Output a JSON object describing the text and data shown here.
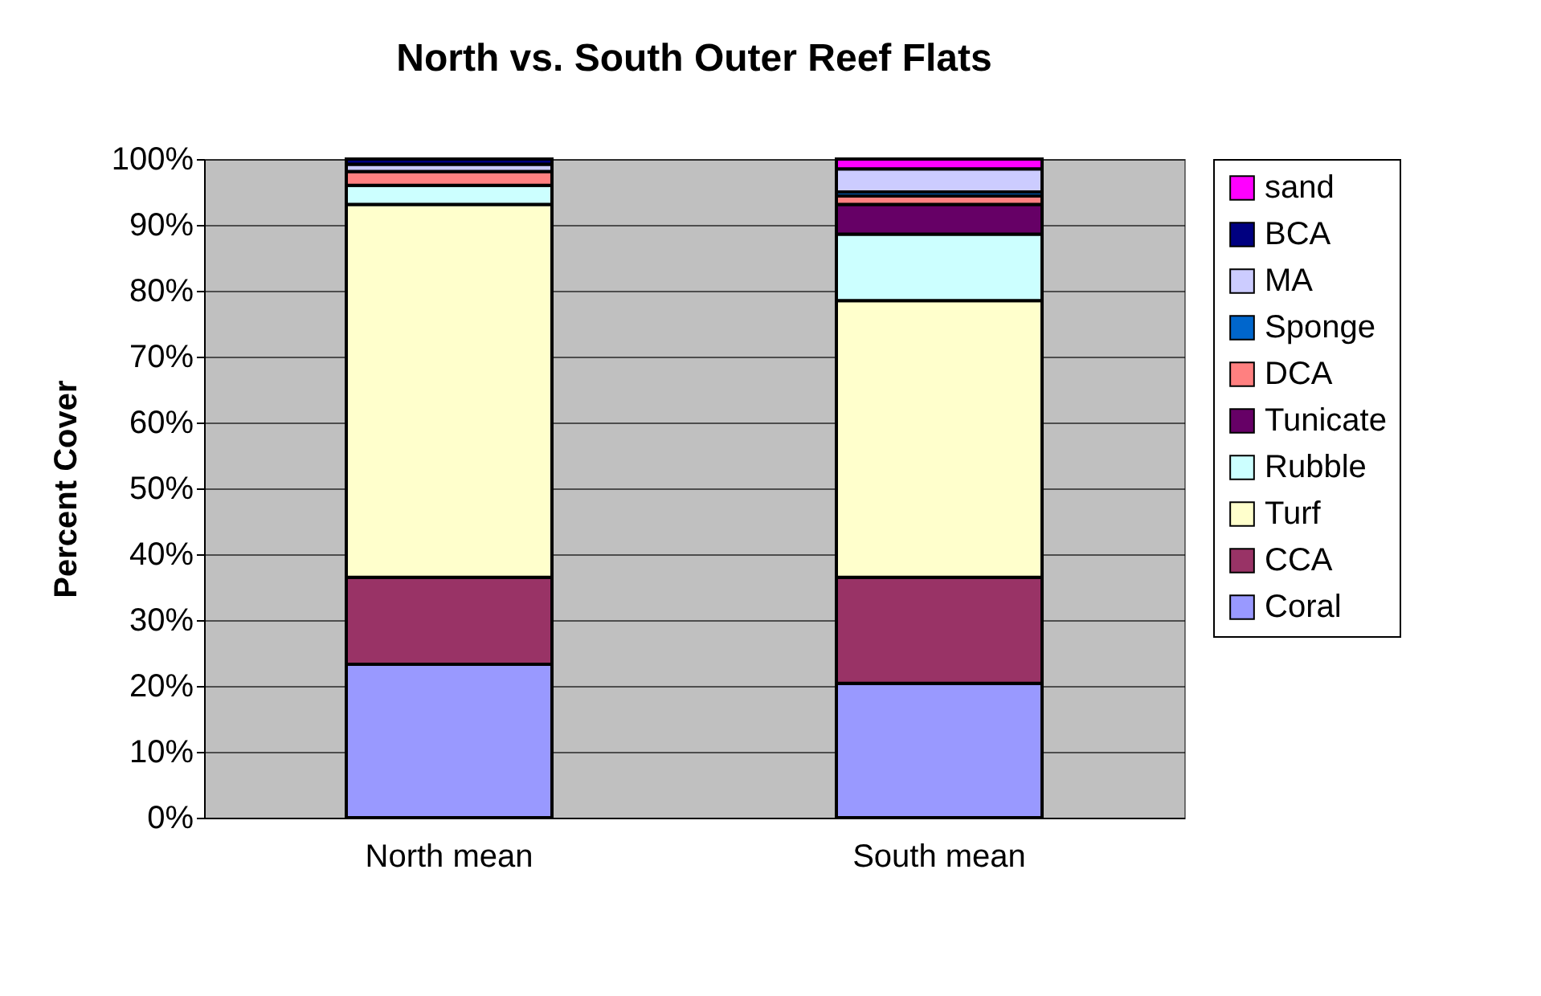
{
  "chart_data": {
    "type": "bar",
    "stacked": true,
    "title": "North vs. South Outer Reef Flats",
    "ylabel": "Percent Cover",
    "categories": [
      "North mean",
      "South mean"
    ],
    "series": [
      {
        "name": "Coral",
        "color": "#9999ff",
        "values": [
          23.3,
          20.4
        ]
      },
      {
        "name": "CCA",
        "color": "#993366",
        "values": [
          13.2,
          16.1
        ]
      },
      {
        "name": "Turf",
        "color": "#ffffcc",
        "values": [
          56.6,
          42.0
        ]
      },
      {
        "name": "Rubble",
        "color": "#ccffff",
        "values": [
          2.9,
          10.1
        ]
      },
      {
        "name": "Tunicate",
        "color": "#660066",
        "values": [
          null,
          4.5
        ]
      },
      {
        "name": "DCA",
        "color": "#ff8080",
        "values": [
          2.1,
          1.3
        ]
      },
      {
        "name": "Sponge",
        "color": "#0066cc",
        "values": [
          null,
          0.6
        ]
      },
      {
        "name": "MA",
        "color": "#ccccff",
        "values": [
          1.1,
          3.5
        ]
      },
      {
        "name": "BCA",
        "color": "#000080",
        "values": [
          0.8,
          null
        ]
      },
      {
        "name": "sand",
        "color": "#ff00ff",
        "values": [
          null,
          1.5
        ]
      }
    ],
    "ylim": [
      0,
      100
    ],
    "yticks": [
      {
        "value": 0,
        "label": "0%"
      },
      {
        "value": 10,
        "label": "10%"
      },
      {
        "value": 20,
        "label": "20%"
      },
      {
        "value": 30,
        "label": "30%"
      },
      {
        "value": 40,
        "label": "40%"
      },
      {
        "value": 50,
        "label": "50%"
      },
      {
        "value": 60,
        "label": "60%"
      },
      {
        "value": 70,
        "label": "70%"
      },
      {
        "value": 80,
        "label": "80%"
      },
      {
        "value": 90,
        "label": "90%"
      },
      {
        "value": 100,
        "label": "100%"
      }
    ],
    "grid": "y",
    "legend": "right"
  }
}
